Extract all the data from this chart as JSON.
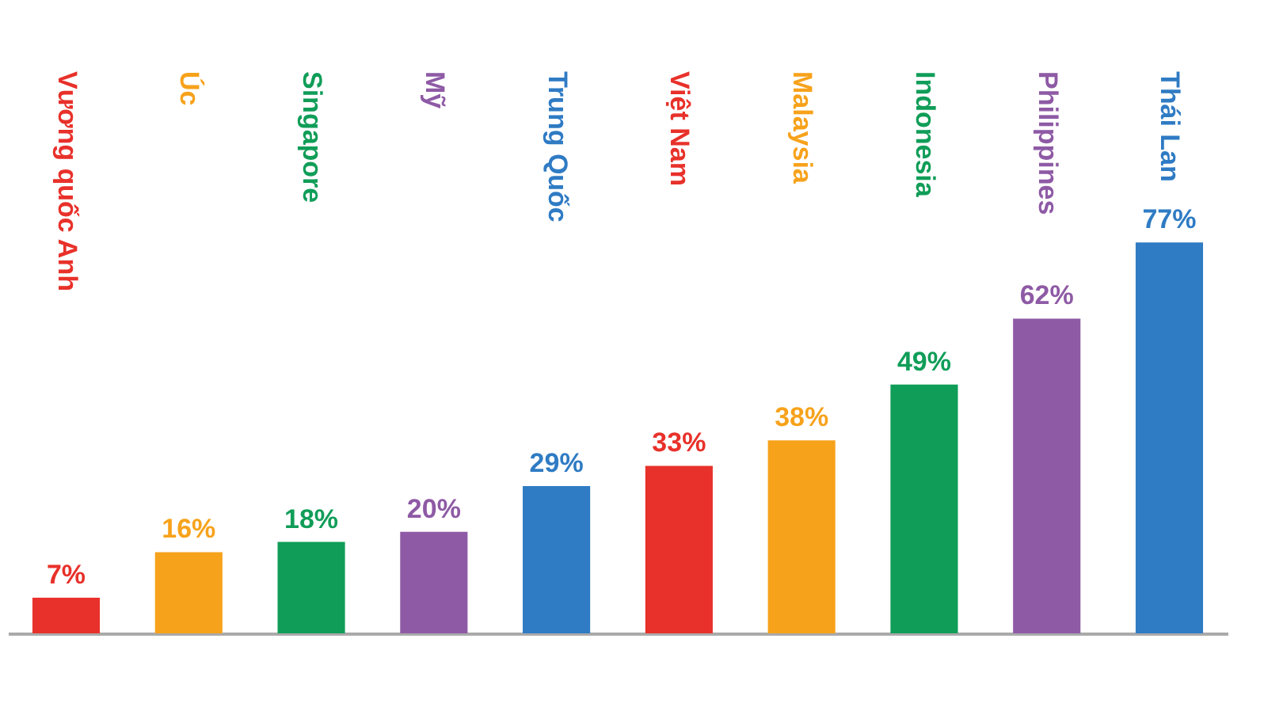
{
  "chart_data": {
    "type": "bar",
    "categories": [
      "Vương quốc Anh",
      "Úc",
      "Singapore",
      "Mỹ",
      "Trung Quốc",
      "Việt Nam",
      "Malaysia",
      "Indonesia",
      "Philippines",
      "Thái Lan"
    ],
    "values": [
      7,
      16,
      18,
      20,
      29,
      33,
      38,
      49,
      62,
      77
    ],
    "colors": [
      "#e8312a",
      "#f7a21b",
      "#109d58",
      "#8e5aa5",
      "#2f7bc4",
      "#e8312a",
      "#f7a21b",
      "#109d58",
      "#8e5aa5",
      "#2f7bc4"
    ],
    "value_labels": [
      "7%",
      "16%",
      "18%",
      "20%",
      "29%",
      "33%",
      "38%",
      "49%",
      "62%",
      "77%"
    ],
    "grid": false
  }
}
